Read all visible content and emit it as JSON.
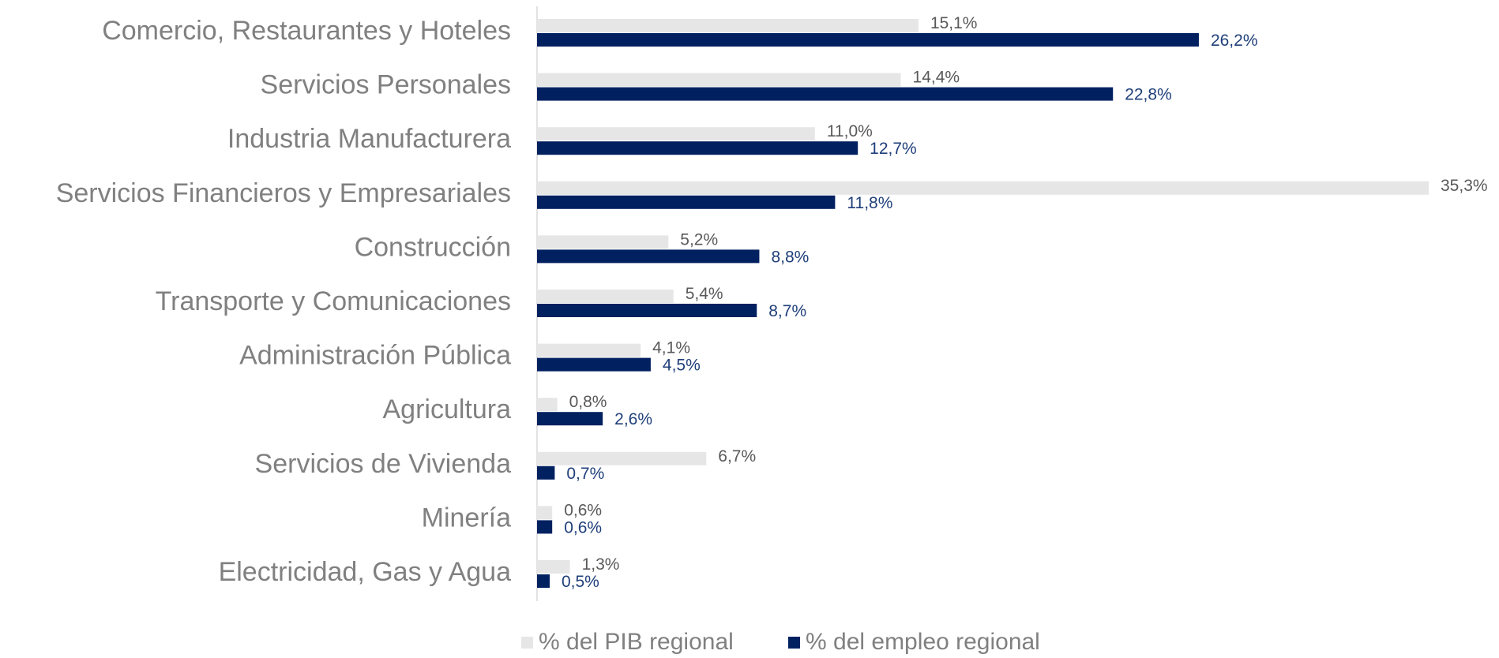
{
  "chart_data": {
    "type": "barh",
    "categories": [
      "Comercio, Restaurantes y Hoteles",
      "Servicios Personales",
      "Industria Manufacturera",
      "Servicios Financieros y Empresariales",
      "Construcción",
      "Transporte y Comunicaciones",
      "Administración Pública",
      "Agricultura",
      "Servicios de Vivienda",
      "Minería",
      "Electricidad, Gas y Agua"
    ],
    "series": [
      {
        "name": "% del PIB regional",
        "color": "#e7e6e6",
        "label_color": "#595959",
        "values": [
          15.1,
          14.4,
          11.0,
          35.3,
          5.2,
          5.4,
          4.1,
          0.8,
          6.7,
          0.6,
          1.3
        ],
        "value_labels": [
          "15,1%",
          "14,4%",
          "11,0%",
          "35,3%",
          "5,2%",
          "5,4%",
          "4,1%",
          "0,8%",
          "6,7%",
          "0,6%",
          "1,3%"
        ]
      },
      {
        "name": "% del empleo regional",
        "color": "#002060",
        "label_color": "#1f3f7a",
        "values": [
          26.2,
          22.8,
          12.7,
          11.8,
          8.8,
          8.7,
          4.5,
          2.6,
          0.7,
          0.6,
          0.5
        ],
        "value_labels": [
          "26,2%",
          "22,8%",
          "12,7%",
          "11,8%",
          "8,8%",
          "8,7%",
          "4,5%",
          "2,6%",
          "0,7%",
          "0,6%",
          "0,5%"
        ]
      }
    ],
    "legend": "bottom"
  }
}
